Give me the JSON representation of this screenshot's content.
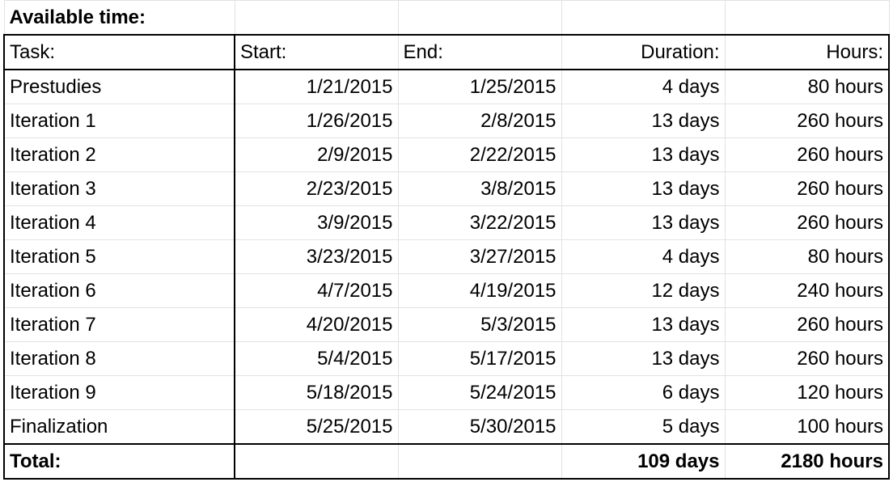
{
  "sheet": {
    "title": "Available time:",
    "headers": {
      "task": "Task:",
      "start": "Start:",
      "end": "End:",
      "duration": "Duration:",
      "hours": "Hours:"
    },
    "rows": [
      {
        "task": "Prestudies",
        "start": "1/21/2015",
        "end": "1/25/2015",
        "duration": "4 days",
        "hours": "80 hours"
      },
      {
        "task": "Iteration 1",
        "start": "1/26/2015",
        "end": "2/8/2015",
        "duration": "13 days",
        "hours": "260 hours"
      },
      {
        "task": "Iteration 2",
        "start": "2/9/2015",
        "end": "2/22/2015",
        "duration": "13 days",
        "hours": "260 hours"
      },
      {
        "task": "Iteration 3",
        "start": "2/23/2015",
        "end": "3/8/2015",
        "duration": "13 days",
        "hours": "260 hours"
      },
      {
        "task": "Iteration 4",
        "start": "3/9/2015",
        "end": "3/22/2015",
        "duration": "13 days",
        "hours": "260 hours"
      },
      {
        "task": "Iteration 5",
        "start": "3/23/2015",
        "end": "3/27/2015",
        "duration": "4 days",
        "hours": "80 hours"
      },
      {
        "task": "Iteration 6",
        "start": "4/7/2015",
        "end": "4/19/2015",
        "duration": "12 days",
        "hours": "240 hours"
      },
      {
        "task": "Iteration 7",
        "start": "4/20/2015",
        "end": "5/3/2015",
        "duration": "13 days",
        "hours": "260 hours"
      },
      {
        "task": "Iteration 8",
        "start": "5/4/2015",
        "end": "5/17/2015",
        "duration": "13 days",
        "hours": "260 hours"
      },
      {
        "task": "Iteration 9",
        "start": "5/18/2015",
        "end": "5/24/2015",
        "duration": "6 days",
        "hours": "120 hours"
      },
      {
        "task": "Finalization",
        "start": "5/25/2015",
        "end": "5/30/2015",
        "duration": "5 days",
        "hours": "100 hours"
      }
    ],
    "total": {
      "label": "Total:",
      "start": "",
      "end": "",
      "duration": "109 days",
      "hours": "2180 hours"
    }
  }
}
